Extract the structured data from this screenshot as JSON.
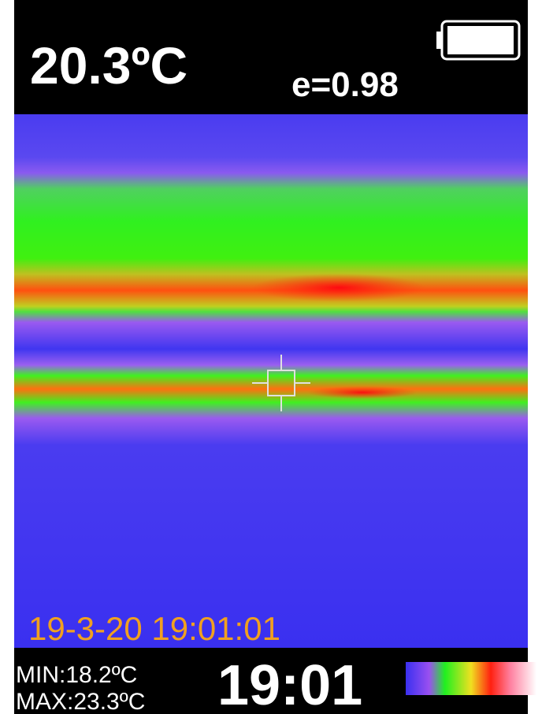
{
  "header": {
    "temperature": "20.3ºC",
    "emissivity": "e=0.98"
  },
  "overlay": {
    "timestamp": "19-3-20 19:01:01"
  },
  "footer": {
    "min": "MIN:18.2ºC",
    "max": "MAX:23.3ºC",
    "clock": "19:01"
  }
}
